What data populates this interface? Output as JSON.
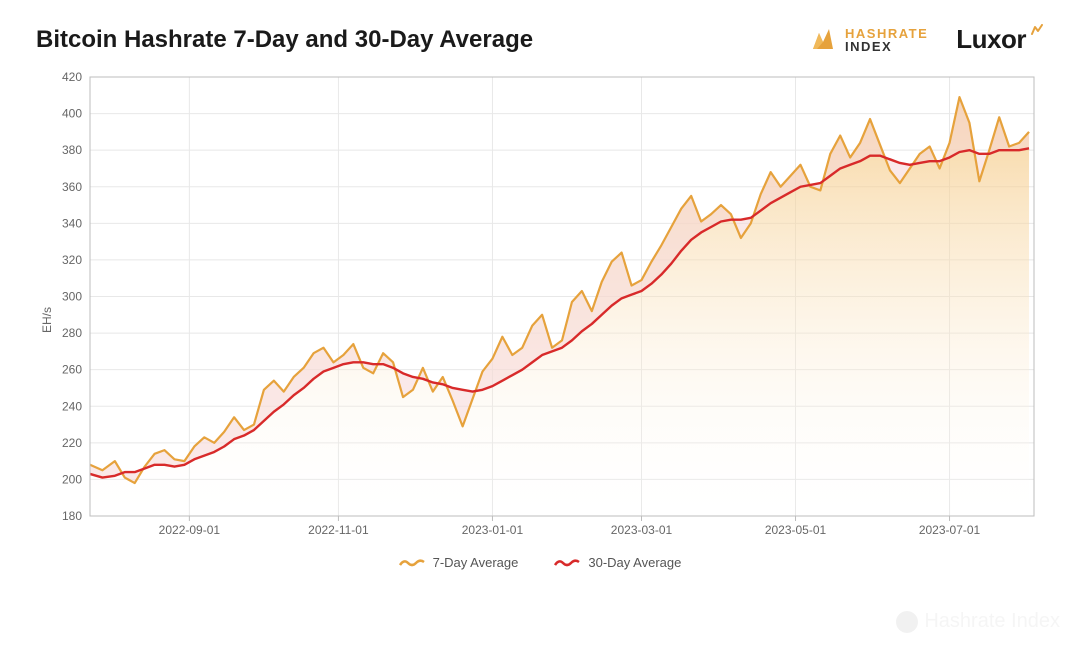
{
  "title": "Bitcoin Hashrate 7-Day and 30-Day Average",
  "brand_hashrate": {
    "line1": "HASHRATE",
    "line2": "INDEX",
    "icon_color": "#e6a23c"
  },
  "brand_luxor": {
    "text": "Luxor",
    "spark_color": "#e6a23c"
  },
  "watermark_text": "Hashrate Index",
  "chart": {
    "type": "line-area",
    "ylabel": "EH/s",
    "ylim": [
      180,
      420
    ],
    "ytick_step": 20,
    "yticks": [
      180,
      200,
      220,
      240,
      260,
      280,
      300,
      320,
      340,
      360,
      380,
      400,
      420
    ],
    "xlim": [
      0,
      380
    ],
    "x_ticks": [
      {
        "pos": 40,
        "label": "2022-09-01"
      },
      {
        "pos": 100,
        "label": "2022-11-01"
      },
      {
        "pos": 162,
        "label": "2023-01-01"
      },
      {
        "pos": 222,
        "label": "2023-03-01"
      },
      {
        "pos": 284,
        "label": "2023-05-01"
      },
      {
        "pos": 346,
        "label": "2023-07-01"
      }
    ],
    "grid_color": "#e8e8e8",
    "axis_color": "#bdbdbd",
    "background_color": "#ffffff",
    "area_gradient_top": "#f4c57a",
    "area_gradient_bottom": "#ffffff",
    "diff_fill_color": "#f5d7d7",
    "tick_fontsize": 12,
    "label_fontsize": 12,
    "series": {
      "seven_day": {
        "label": "7-Day Average",
        "color": "#e6a23c",
        "line_width": 2.2,
        "data": [
          [
            0,
            208
          ],
          [
            5,
            205
          ],
          [
            10,
            210
          ],
          [
            14,
            201
          ],
          [
            18,
            198
          ],
          [
            22,
            207
          ],
          [
            26,
            214
          ],
          [
            30,
            216
          ],
          [
            34,
            211
          ],
          [
            38,
            210
          ],
          [
            42,
            218
          ],
          [
            46,
            223
          ],
          [
            50,
            220
          ],
          [
            54,
            226
          ],
          [
            58,
            234
          ],
          [
            62,
            227
          ],
          [
            66,
            230
          ],
          [
            70,
            249
          ],
          [
            74,
            254
          ],
          [
            78,
            248
          ],
          [
            82,
            256
          ],
          [
            86,
            261
          ],
          [
            90,
            269
          ],
          [
            94,
            272
          ],
          [
            98,
            264
          ],
          [
            102,
            268
          ],
          [
            106,
            274
          ],
          [
            110,
            261
          ],
          [
            114,
            258
          ],
          [
            118,
            269
          ],
          [
            122,
            264
          ],
          [
            126,
            245
          ],
          [
            130,
            249
          ],
          [
            134,
            261
          ],
          [
            138,
            248
          ],
          [
            142,
            256
          ],
          [
            146,
            243
          ],
          [
            150,
            229
          ],
          [
            154,
            244
          ],
          [
            158,
            259
          ],
          [
            162,
            266
          ],
          [
            166,
            278
          ],
          [
            170,
            268
          ],
          [
            174,
            272
          ],
          [
            178,
            284
          ],
          [
            182,
            290
          ],
          [
            186,
            272
          ],
          [
            190,
            276
          ],
          [
            194,
            297
          ],
          [
            198,
            303
          ],
          [
            202,
            292
          ],
          [
            206,
            308
          ],
          [
            210,
            319
          ],
          [
            214,
            324
          ],
          [
            218,
            306
          ],
          [
            222,
            309
          ],
          [
            226,
            319
          ],
          [
            230,
            328
          ],
          [
            234,
            338
          ],
          [
            238,
            348
          ],
          [
            242,
            355
          ],
          [
            246,
            341
          ],
          [
            250,
            345
          ],
          [
            254,
            350
          ],
          [
            258,
            345
          ],
          [
            262,
            332
          ],
          [
            266,
            340
          ],
          [
            270,
            356
          ],
          [
            274,
            368
          ],
          [
            278,
            360
          ],
          [
            282,
            366
          ],
          [
            286,
            372
          ],
          [
            290,
            360
          ],
          [
            294,
            358
          ],
          [
            298,
            378
          ],
          [
            302,
            388
          ],
          [
            306,
            376
          ],
          [
            310,
            384
          ],
          [
            314,
            397
          ],
          [
            318,
            383
          ],
          [
            322,
            369
          ],
          [
            326,
            362
          ],
          [
            330,
            370
          ],
          [
            334,
            378
          ],
          [
            338,
            382
          ],
          [
            342,
            370
          ],
          [
            346,
            384
          ],
          [
            350,
            409
          ],
          [
            354,
            395
          ],
          [
            358,
            363
          ],
          [
            362,
            380
          ],
          [
            366,
            398
          ],
          [
            370,
            382
          ],
          [
            374,
            384
          ],
          [
            378,
            390
          ]
        ]
      },
      "thirty_day": {
        "label": "30-Day Average",
        "color": "#d82a2a",
        "line_width": 2.4,
        "data": [
          [
            0,
            203
          ],
          [
            5,
            201
          ],
          [
            10,
            202
          ],
          [
            14,
            204
          ],
          [
            18,
            204
          ],
          [
            22,
            206
          ],
          [
            26,
            208
          ],
          [
            30,
            208
          ],
          [
            34,
            207
          ],
          [
            38,
            208
          ],
          [
            42,
            211
          ],
          [
            46,
            213
          ],
          [
            50,
            215
          ],
          [
            54,
            218
          ],
          [
            58,
            222
          ],
          [
            62,
            224
          ],
          [
            66,
            227
          ],
          [
            70,
            232
          ],
          [
            74,
            237
          ],
          [
            78,
            241
          ],
          [
            82,
            246
          ],
          [
            86,
            250
          ],
          [
            90,
            255
          ],
          [
            94,
            259
          ],
          [
            98,
            261
          ],
          [
            102,
            263
          ],
          [
            106,
            264
          ],
          [
            110,
            264
          ],
          [
            114,
            263
          ],
          [
            118,
            263
          ],
          [
            122,
            261
          ],
          [
            126,
            258
          ],
          [
            130,
            256
          ],
          [
            134,
            255
          ],
          [
            138,
            253
          ],
          [
            142,
            252
          ],
          [
            146,
            250
          ],
          [
            150,
            249
          ],
          [
            154,
            248
          ],
          [
            158,
            249
          ],
          [
            162,
            251
          ],
          [
            166,
            254
          ],
          [
            170,
            257
          ],
          [
            174,
            260
          ],
          [
            178,
            264
          ],
          [
            182,
            268
          ],
          [
            186,
            270
          ],
          [
            190,
            272
          ],
          [
            194,
            276
          ],
          [
            198,
            281
          ],
          [
            202,
            285
          ],
          [
            206,
            290
          ],
          [
            210,
            295
          ],
          [
            214,
            299
          ],
          [
            218,
            301
          ],
          [
            222,
            303
          ],
          [
            226,
            307
          ],
          [
            230,
            312
          ],
          [
            234,
            318
          ],
          [
            238,
            325
          ],
          [
            242,
            331
          ],
          [
            246,
            335
          ],
          [
            250,
            338
          ],
          [
            254,
            341
          ],
          [
            258,
            342
          ],
          [
            262,
            342
          ],
          [
            266,
            343
          ],
          [
            270,
            347
          ],
          [
            274,
            351
          ],
          [
            278,
            354
          ],
          [
            282,
            357
          ],
          [
            286,
            360
          ],
          [
            290,
            361
          ],
          [
            294,
            362
          ],
          [
            298,
            366
          ],
          [
            302,
            370
          ],
          [
            306,
            372
          ],
          [
            310,
            374
          ],
          [
            314,
            377
          ],
          [
            318,
            377
          ],
          [
            322,
            375
          ],
          [
            326,
            373
          ],
          [
            330,
            372
          ],
          [
            334,
            373
          ],
          [
            338,
            374
          ],
          [
            342,
            374
          ],
          [
            346,
            376
          ],
          [
            350,
            379
          ],
          [
            354,
            380
          ],
          [
            358,
            378
          ],
          [
            362,
            378
          ],
          [
            366,
            380
          ],
          [
            370,
            380
          ],
          [
            374,
            380
          ],
          [
            378,
            381
          ]
        ]
      }
    },
    "legend_swatch": "squiggle"
  }
}
